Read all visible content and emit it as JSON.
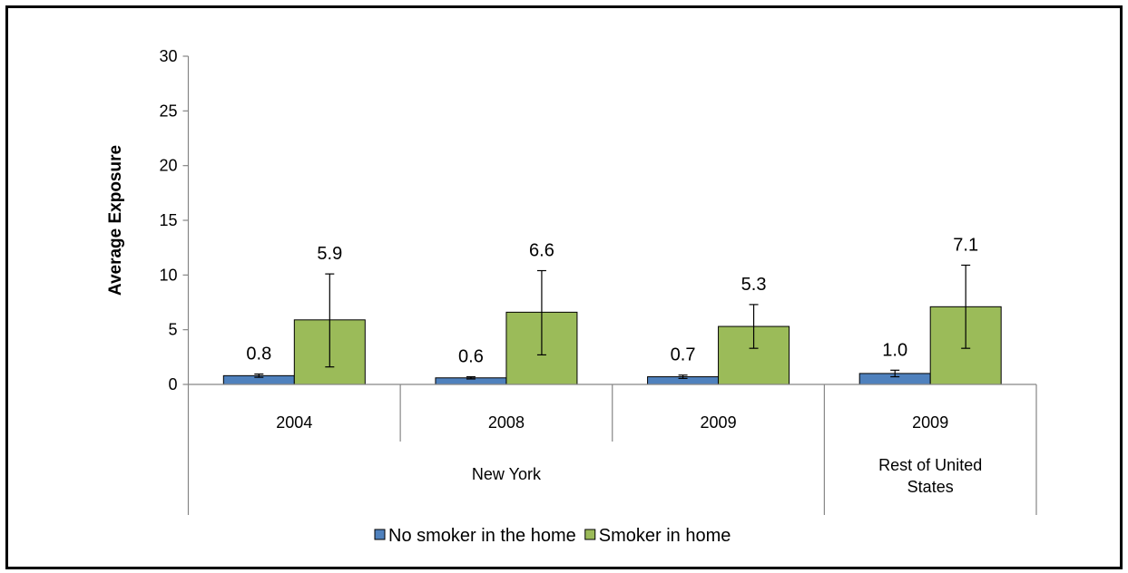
{
  "chart_data": {
    "type": "bar",
    "title": "",
    "xlabel": "",
    "ylabel": "Average Exposure",
    "ylim": [
      0,
      30
    ],
    "yticks": [
      0,
      5,
      10,
      15,
      20,
      25,
      30
    ],
    "grid": false,
    "legend_position": "bottom",
    "categories": [
      "2004",
      "2008",
      "2009",
      "2009"
    ],
    "groups": [
      {
        "label": "New York",
        "span": [
          0,
          2
        ]
      },
      {
        "label": "Rest of United States",
        "label_lines": [
          "Rest of United",
          "States"
        ],
        "span": [
          3,
          3
        ]
      }
    ],
    "series": [
      {
        "name": "No smoker in the home",
        "color": "#4F81BD",
        "values": [
          0.8,
          0.6,
          0.7,
          1.0
        ],
        "labels": [
          "0.8",
          "0.6",
          "0.7",
          "1.0"
        ],
        "error_low": [
          0.65,
          0.5,
          0.55,
          0.7
        ],
        "error_high": [
          0.95,
          0.7,
          0.85,
          1.3
        ]
      },
      {
        "name": "Smoker in home",
        "color": "#9BBB59",
        "values": [
          5.9,
          6.6,
          5.3,
          7.1
        ],
        "labels": [
          "5.9",
          "6.6",
          "5.3",
          "7.1"
        ],
        "error_low": [
          1.6,
          2.7,
          3.3,
          3.3
        ],
        "error_high": [
          10.1,
          10.4,
          7.3,
          10.9
        ]
      }
    ]
  }
}
